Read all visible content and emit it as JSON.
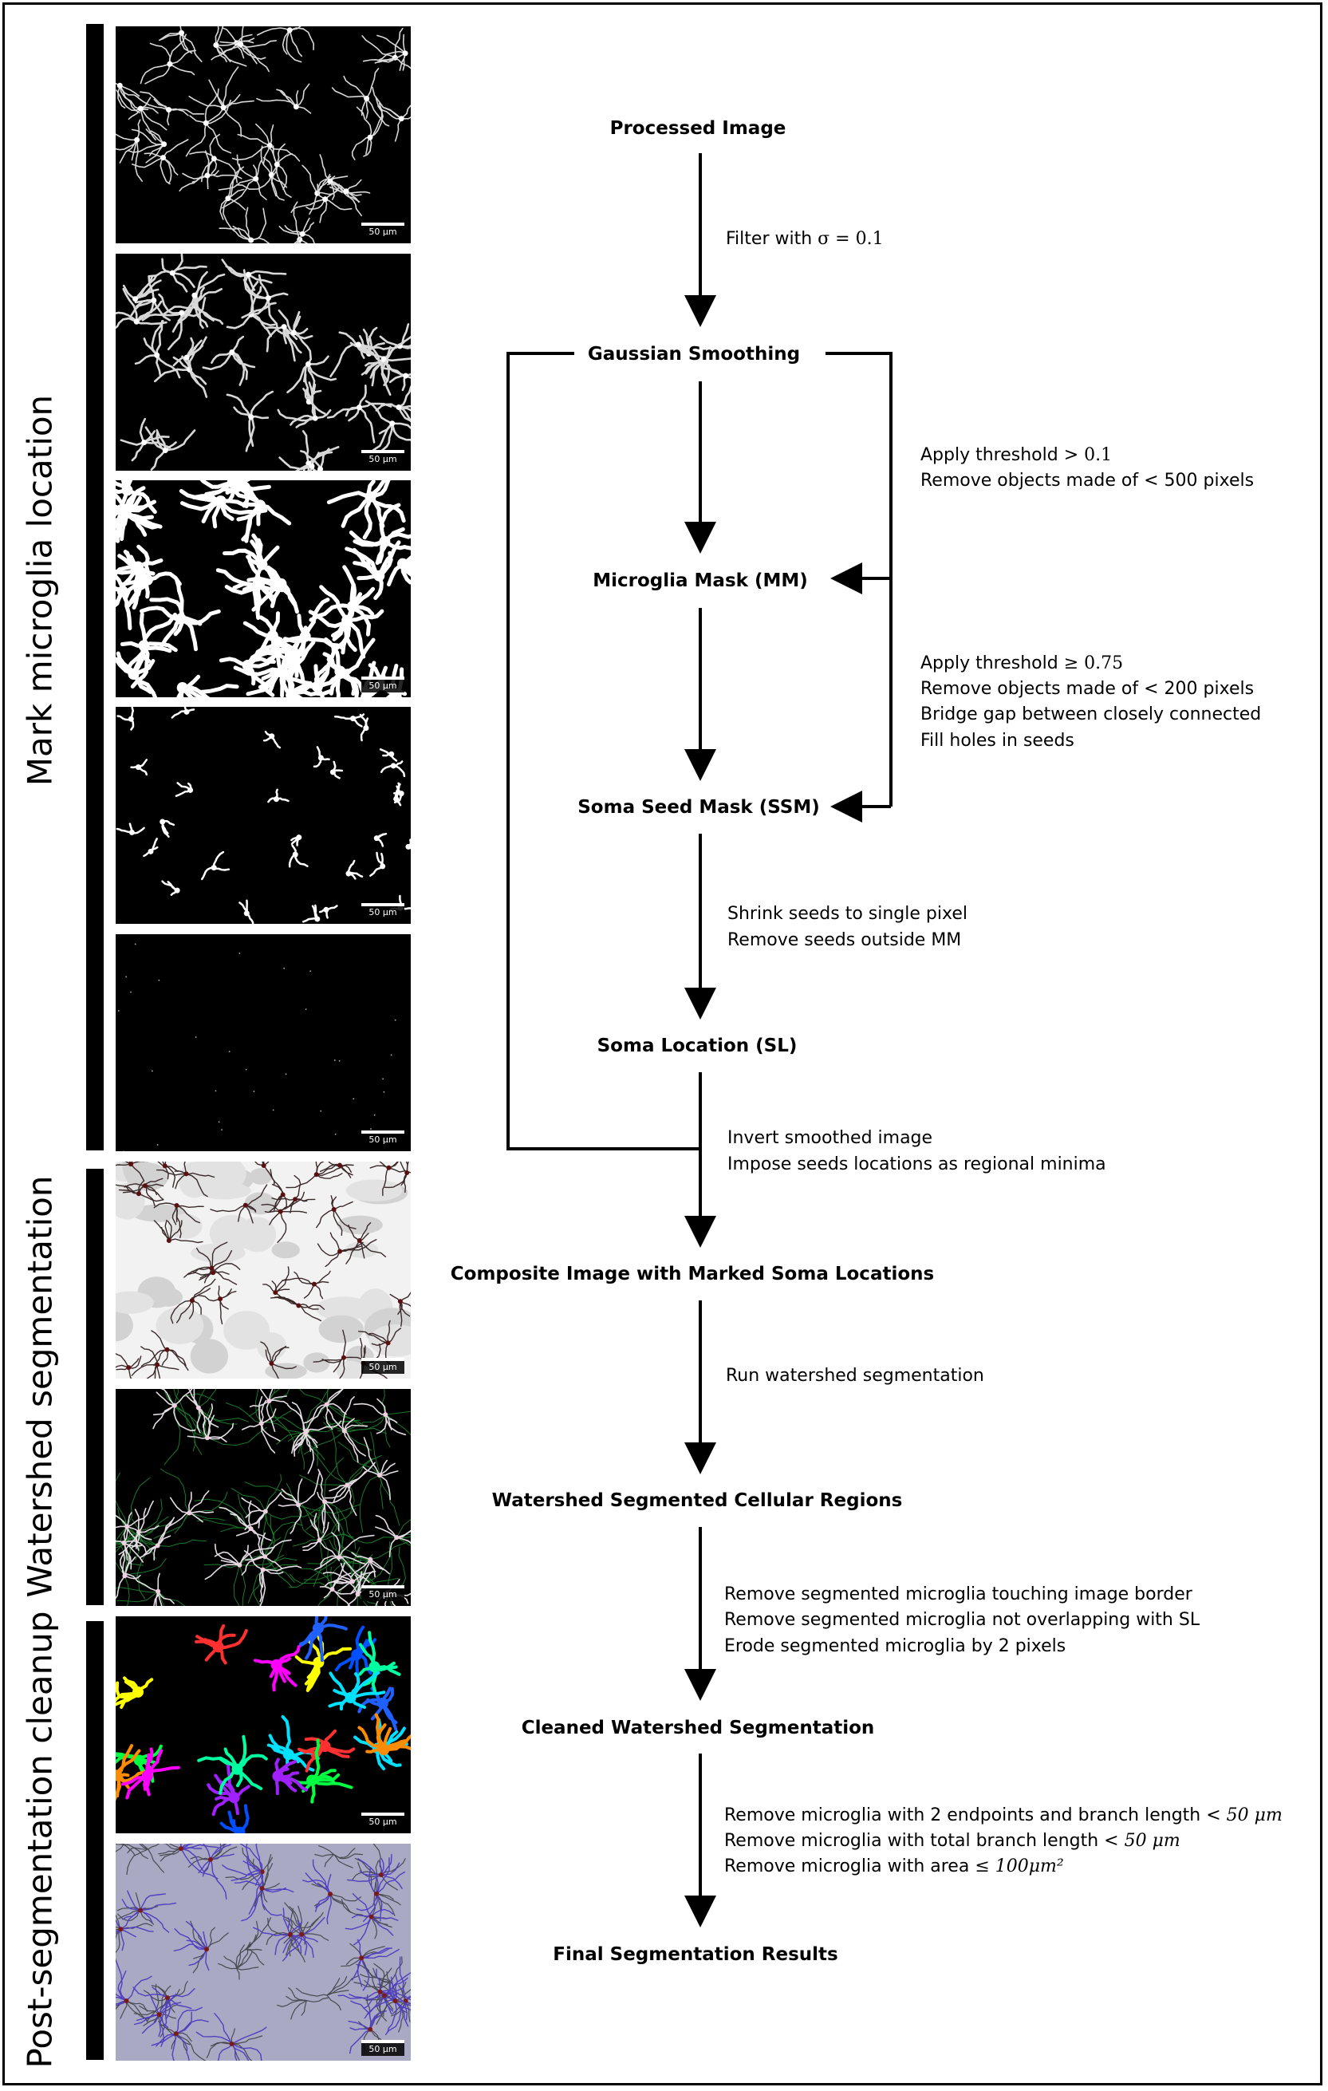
{
  "phases": [
    {
      "label": "Mark microglia location"
    },
    {
      "label": "Watershed segmentation"
    },
    {
      "label": "Post-segmentation cleanup"
    }
  ],
  "scale_bar_label": "50 µm",
  "panels": [
    {
      "name": "processed-image",
      "style": "gray-dense"
    },
    {
      "name": "gaussian-smoothed",
      "style": "gray-smooth"
    },
    {
      "name": "microglia-mask",
      "style": "binary-dense"
    },
    {
      "name": "soma-seed-mask",
      "style": "binary-sparse"
    },
    {
      "name": "soma-location",
      "style": "points"
    },
    {
      "name": "composite-image",
      "style": "inverted"
    },
    {
      "name": "watershed-regions",
      "style": "overlay-green"
    },
    {
      "name": "cleaned-segmentation",
      "style": "colored"
    },
    {
      "name": "final-results",
      "style": "final-blue"
    }
  ],
  "nodes": {
    "processed": "Processed Image",
    "gaussian": "Gaussian Smoothing",
    "mm": "Microglia Mask (MM)",
    "ssm": "Soma Seed Mask (SSM)",
    "sl": "Soma Location (SL)",
    "composite": "Composite Image with Marked Soma Locations",
    "watershed": "Watershed Segmented Cellular Regions",
    "cleaned": "Cleaned Watershed Segmentation",
    "final": "Final Segmentation Results"
  },
  "steps": {
    "filter_prefix": "Filter with ",
    "filter_math": "σ = 0.1",
    "thr1_prefix": "Apply threshold ",
    "thr1_math": "> 0.1",
    "thr1_line2": "Remove objects made of < 500 pixels",
    "thr2_prefix": "Apply threshold ",
    "thr2_math": "≥ 0.75",
    "thr2_line2": "Remove objects made of < 200 pixels",
    "thr2_line3": "Bridge gap between closely connected",
    "thr2_line4": "Fill holes in seeds",
    "shrink_line1": "Shrink seeds to single pixel",
    "shrink_line2": "Remove seeds outside MM",
    "invert_line1": "Invert smoothed image",
    "invert_line2": "Impose seeds locations as regional minima",
    "watershed_step": "Run watershed segmentation",
    "clean_line1": "Remove segmented microglia touching image border",
    "clean_line2": "Remove segmented microglia not overlapping with SL",
    "clean_line3": "Erode segmented microglia by 2 pixels",
    "final_line1_prefix": "Remove microglia with 2 endpoints and branch length ",
    "final_line1_math": "< 50 μm",
    "final_line2_prefix": "Remove microglia with total branch length ",
    "final_line2_math": "< 50 μm",
    "final_line3_prefix": "Remove microglia with area ",
    "final_line3_math": "≤ 100μm²"
  },
  "colors": {
    "segment_palette": [
      "#ff00ff",
      "#00e0ff",
      "#ffff00",
      "#ff3030",
      "#0050ff",
      "#00ff40",
      "#ff8c00",
      "#a020ff",
      "#00ffa0",
      "#2060ff"
    ],
    "final_background": "#a9a9c4",
    "outline_blue": "#5040c0",
    "outline_green": "#1a7a2a"
  }
}
